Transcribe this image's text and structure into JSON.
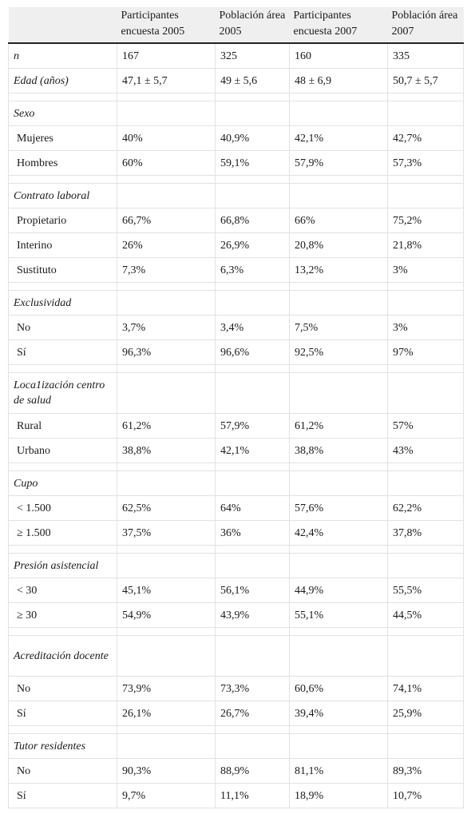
{
  "columns": [
    "",
    "Participantes encuesta 2005",
    "Población área 2005",
    "Participantes encuesta 2007",
    "Población área 2007"
  ],
  "rows": [
    {
      "kind": "top",
      "label": "n",
      "values": [
        "167",
        "325",
        "160",
        "335"
      ]
    },
    {
      "kind": "top",
      "label": "Edad (años)",
      "values": [
        "47,1 ± 5,7",
        "49 ± 5,6",
        "48 ± 6,9",
        "50,7 ± 5,7"
      ]
    },
    {
      "kind": "spacer"
    },
    {
      "kind": "group",
      "label": "Sexo"
    },
    {
      "kind": "item",
      "label": "Mujeres",
      "values": [
        "40%",
        "40,9%",
        "42,1%",
        "42,7%"
      ]
    },
    {
      "kind": "item",
      "label": "Hombres",
      "values": [
        "60%",
        "59,1%",
        "57,9%",
        "57,3%"
      ]
    },
    {
      "kind": "spacer"
    },
    {
      "kind": "group",
      "label": "Contrato laboral"
    },
    {
      "kind": "item",
      "label": "Propietario",
      "values": [
        "66,7%",
        "66,8%",
        "66%",
        "75,2%"
      ]
    },
    {
      "kind": "item",
      "label": "Interino",
      "values": [
        "26%",
        "26,9%",
        "20,8%",
        "21,8%"
      ]
    },
    {
      "kind": "item",
      "label": "Sustituto",
      "values": [
        "7,3%",
        "6,3%",
        "13,2%",
        "3%"
      ]
    },
    {
      "kind": "spacer"
    },
    {
      "kind": "group",
      "label": "Exclusividad"
    },
    {
      "kind": "item",
      "label": "No",
      "values": [
        "3,7%",
        "3,4%",
        "7,5%",
        "3%"
      ]
    },
    {
      "kind": "item",
      "label": "Sí",
      "values": [
        "96,3%",
        "96,6%",
        "92,5%",
        "97%"
      ]
    },
    {
      "kind": "spacer"
    },
    {
      "kind": "group2",
      "label": "Loca1ización centro de salud"
    },
    {
      "kind": "item",
      "label": "Rural",
      "values": [
        "61,2%",
        "57,9%",
        "61,2%",
        "57%"
      ]
    },
    {
      "kind": "item",
      "label": "Urbano",
      "values": [
        "38,8%",
        "42,1%",
        "38,8%",
        "43%"
      ]
    },
    {
      "kind": "spacer"
    },
    {
      "kind": "group",
      "label": "Cupo"
    },
    {
      "kind": "item",
      "label": "< 1.500",
      "values": [
        "62,5%",
        "64%",
        "57,6%",
        "62,2%"
      ]
    },
    {
      "kind": "item",
      "label": "≥ 1.500",
      "values": [
        "37,5%",
        "36%",
        "42,4%",
        "37,8%"
      ]
    },
    {
      "kind": "spacer"
    },
    {
      "kind": "group",
      "label": "Presión asistencial"
    },
    {
      "kind": "item",
      "label": "< 30",
      "values": [
        "45,1%",
        "56,1%",
        "44,9%",
        "55,5%"
      ]
    },
    {
      "kind": "item",
      "label": "≥ 30",
      "values": [
        "54,9%",
        "43,9%",
        "55,1%",
        "44,5%"
      ]
    },
    {
      "kind": "spacer"
    },
    {
      "kind": "group2",
      "label": "Acreditación docente"
    },
    {
      "kind": "item",
      "label": "No",
      "values": [
        "73,9%",
        "73,3%",
        "60,6%",
        "74,1%"
      ]
    },
    {
      "kind": "item",
      "label": "Sí",
      "values": [
        "26,1%",
        "26,7%",
        "39,4%",
        "25,9%"
      ]
    },
    {
      "kind": "spacer"
    },
    {
      "kind": "group",
      "label": "Tutor residentes"
    },
    {
      "kind": "item",
      "label": "No",
      "values": [
        "90,3%",
        "88,9%",
        "81,1%",
        "89,3%"
      ]
    },
    {
      "kind": "item",
      "label": "Sí",
      "values": [
        "9,7%",
        "11,1%",
        "18,9%",
        "10,7%"
      ]
    }
  ]
}
